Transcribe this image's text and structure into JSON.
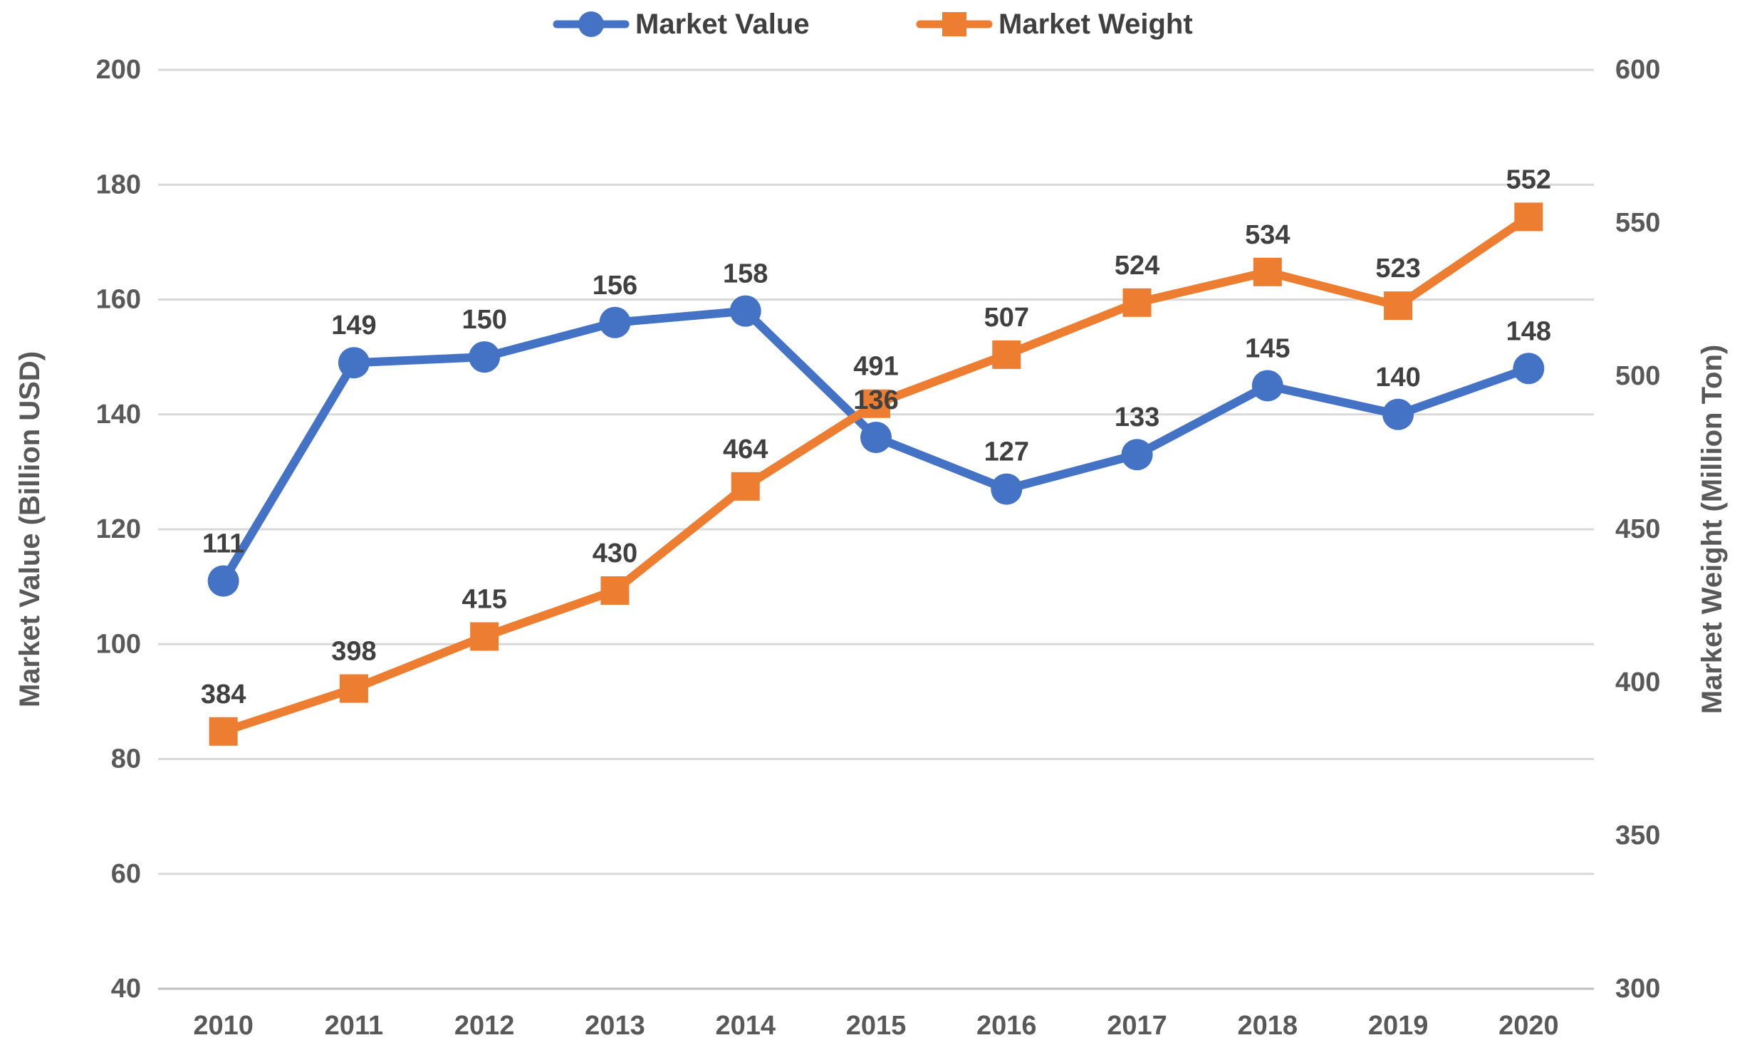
{
  "chart_data": {
    "type": "line",
    "title": "",
    "categories": [
      "2010",
      "2011",
      "2012",
      "2013",
      "2014",
      "2015",
      "2016",
      "2017",
      "2018",
      "2019",
      "2020"
    ],
    "series": [
      {
        "name": "Market Value",
        "axis": "left",
        "color": "#4472C4",
        "marker": "circle",
        "values": [
          111,
          149,
          150,
          156,
          158,
          136,
          127,
          133,
          145,
          140,
          148
        ]
      },
      {
        "name": "Market Weight",
        "axis": "right",
        "color": "#ED7D31",
        "marker": "square",
        "values": [
          384,
          398,
          415,
          430,
          464,
          491,
          507,
          524,
          534,
          523,
          552
        ]
      }
    ],
    "left_axis": {
      "label": "Market Value (Billion USD)",
      "min": 40,
      "max": 200,
      "step": 20,
      "ticks": [
        200,
        180,
        160,
        140,
        120,
        100,
        80,
        60,
        40
      ]
    },
    "right_axis": {
      "label": "Market Weight (Million Ton)",
      "min": 300,
      "max": 600,
      "step": 50,
      "ticks": [
        600,
        550,
        500,
        450,
        400,
        350,
        300
      ]
    },
    "legend_position": "top",
    "grid": true,
    "data_labels": true,
    "colors": {
      "grid": "#D9D9D9",
      "axis_line": "#BFBFBF",
      "axis_text": "#595959",
      "label_text": "#404040",
      "legend_text": "#404040",
      "background": "#FFFFFF"
    }
  }
}
